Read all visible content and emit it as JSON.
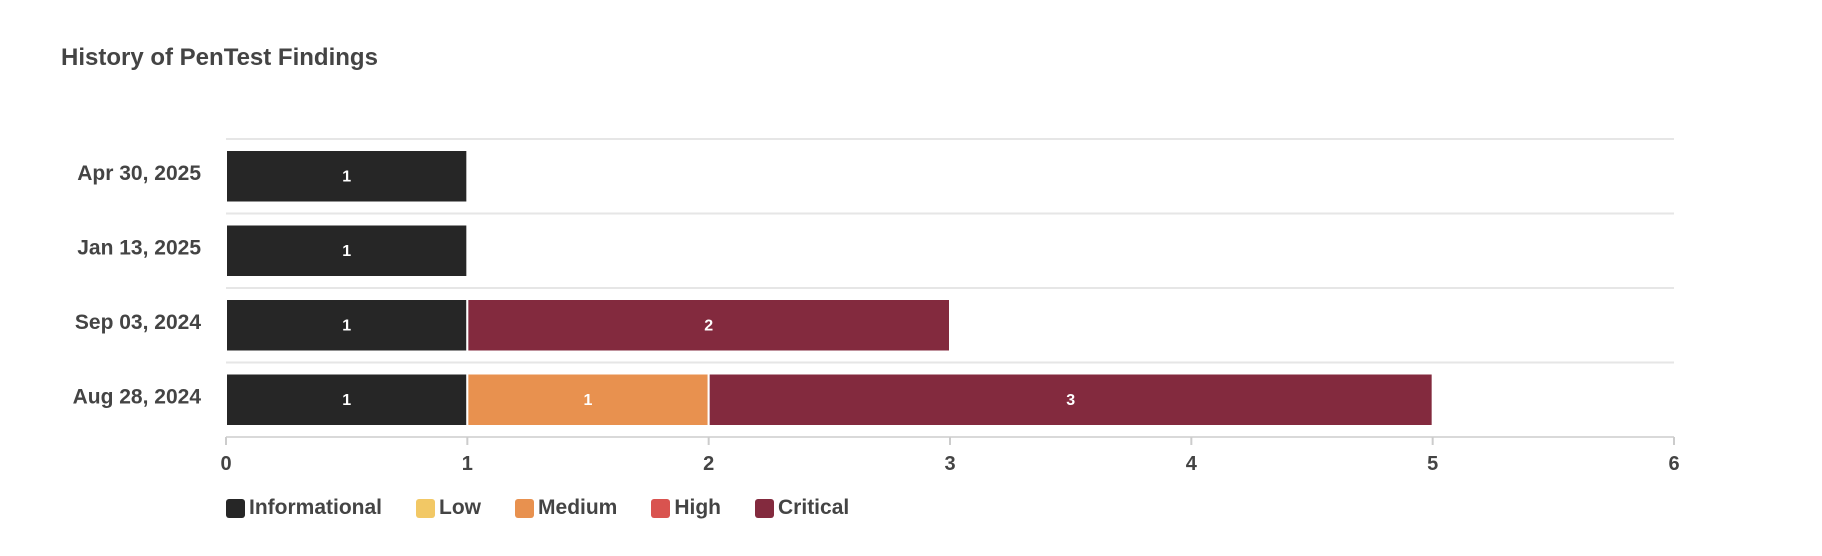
{
  "chart_data": {
    "type": "bar",
    "orientation": "horizontal",
    "stacked": true,
    "title": "History of PenTest Findings",
    "categories": [
      "Apr 30, 2025",
      "Jan 13, 2025",
      "Sep 03, 2024",
      "Aug 28, 2024"
    ],
    "series": [
      {
        "name": "Informational",
        "color": "#262626",
        "values": [
          1,
          1,
          1,
          1
        ]
      },
      {
        "name": "Low",
        "color": "#f2c865",
        "values": [
          0,
          0,
          0,
          0
        ]
      },
      {
        "name": "Medium",
        "color": "#e8914f",
        "values": [
          0,
          0,
          0,
          1
        ]
      },
      {
        "name": "High",
        "color": "#d9534f",
        "values": [
          0,
          0,
          0,
          0
        ]
      },
      {
        "name": "Critical",
        "color": "#832a3e",
        "values": [
          0,
          0,
          2,
          3
        ]
      }
    ],
    "xlim": [
      0,
      6
    ],
    "xticks": [
      "0",
      "1",
      "2",
      "3",
      "4",
      "5",
      "6"
    ],
    "data_labels": true,
    "grid": true,
    "legend_position": "bottom-left"
  }
}
